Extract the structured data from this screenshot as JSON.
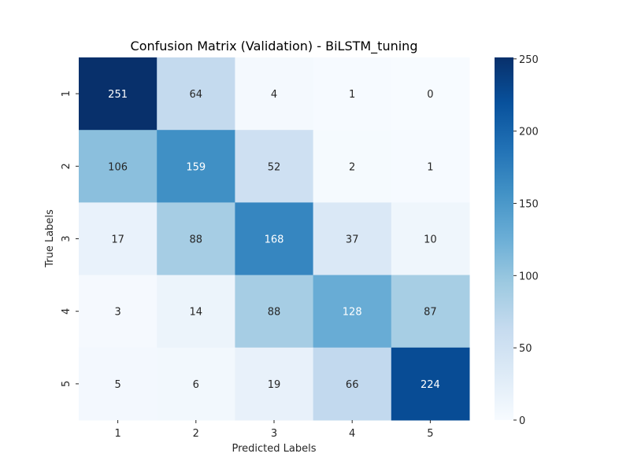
{
  "chart_data": {
    "type": "heatmap",
    "title": "Confusion Matrix (Validation) - BiLSTM_tuning",
    "xlabel": "Predicted Labels",
    "ylabel": "True Labels",
    "x_categories": [
      "1",
      "2",
      "3",
      "4",
      "5"
    ],
    "y_categories": [
      "1",
      "2",
      "3",
      "4",
      "5"
    ],
    "values": [
      [
        251,
        64,
        4,
        1,
        0
      ],
      [
        106,
        159,
        52,
        2,
        1
      ],
      [
        17,
        88,
        168,
        37,
        10
      ],
      [
        3,
        14,
        88,
        128,
        87
      ],
      [
        5,
        6,
        19,
        66,
        224
      ]
    ],
    "colormap": "Blues",
    "color_low": "#f7fbff",
    "color_high": "#08306b",
    "colorbar": {
      "vmin": 0,
      "vmax": 251,
      "ticks": [
        "0",
        "50",
        "100",
        "150",
        "200",
        "250"
      ]
    },
    "annotations": true,
    "grid": false
  }
}
